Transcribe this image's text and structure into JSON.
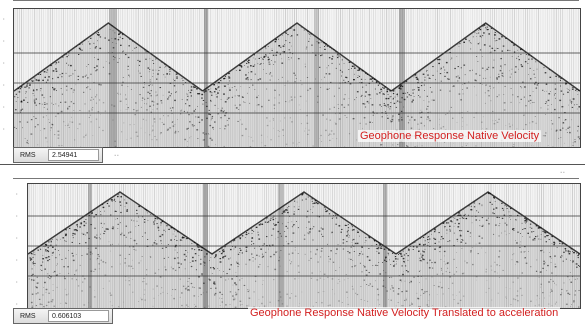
{
  "panels": [
    {
      "caption": "Geophone Response Native Velocity",
      "rms_label": "RMS",
      "rms_value": "2.54941"
    },
    {
      "caption": "Geophone Response Native Velocity Translated to acceleration",
      "rms_label": "RMS",
      "rms_value": "0.606103"
    }
  ],
  "colors": {
    "caption": "#d21f1f",
    "trace": "#111111",
    "background": "#f4f4f4"
  }
}
